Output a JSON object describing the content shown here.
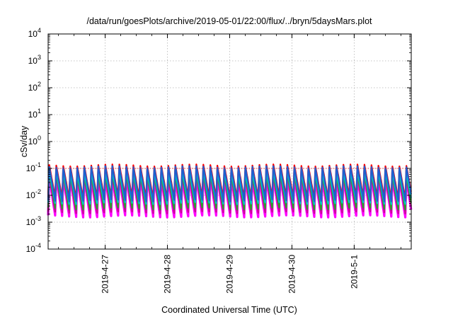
{
  "chart_data": {
    "type": "line",
    "title": "/data/run/goesPlots/archive/2019-05-01/22:00/flux/../bryn/5daysMars.plot",
    "xlabel": "Coordinated Universal Time (UTC)",
    "ylabel": "cSv/day",
    "y_scale": "log",
    "ylim": [
      0.0001,
      10000
    ],
    "y_ticks": [
      {
        "base": "10",
        "exp": "-4"
      },
      {
        "base": "10",
        "exp": "-3"
      },
      {
        "base": "10",
        "exp": "-2"
      },
      {
        "base": "10",
        "exp": "-1"
      },
      {
        "base": "10",
        "exp": "0"
      },
      {
        "base": "10",
        "exp": "1"
      },
      {
        "base": "10",
        "exp": "2"
      },
      {
        "base": "10",
        "exp": "3"
      },
      {
        "base": "10",
        "exp": "4"
      }
    ],
    "xlim": [
      "2019-04-26 02:00",
      "2019-05-01 22:00"
    ],
    "x_ticks": [
      "2019-4-27",
      "2019-4-28",
      "2019-4-29",
      "2019-4-30",
      "2019-5-1"
    ],
    "x_tick_dates": [
      "2019-04-27",
      "2019-04-28",
      "2019-04-29",
      "2019-04-30",
      "2019-05-01"
    ],
    "grid": true,
    "reference_line": 0.1,
    "period_hours": 2.7,
    "series": [
      {
        "color": "#ff00ff",
        "peak": 0.05,
        "trough": 0.0018
      },
      {
        "color": "#cc0099",
        "peak": 0.06,
        "trough": 0.0025
      },
      {
        "color": "#2ca02c",
        "peak": 0.07,
        "trough": 0.0035
      },
      {
        "color": "#00cccc",
        "peak": 0.085,
        "trough": 0.0055
      },
      {
        "color": "#ff0000",
        "peak": 0.15,
        "trough": 0.009
      },
      {
        "color": "#1f5fd0",
        "peak": 0.13,
        "trough": 0.007
      }
    ],
    "colors": {
      "reference_line": "#ff0000",
      "grid": "#b4b4b4"
    }
  }
}
